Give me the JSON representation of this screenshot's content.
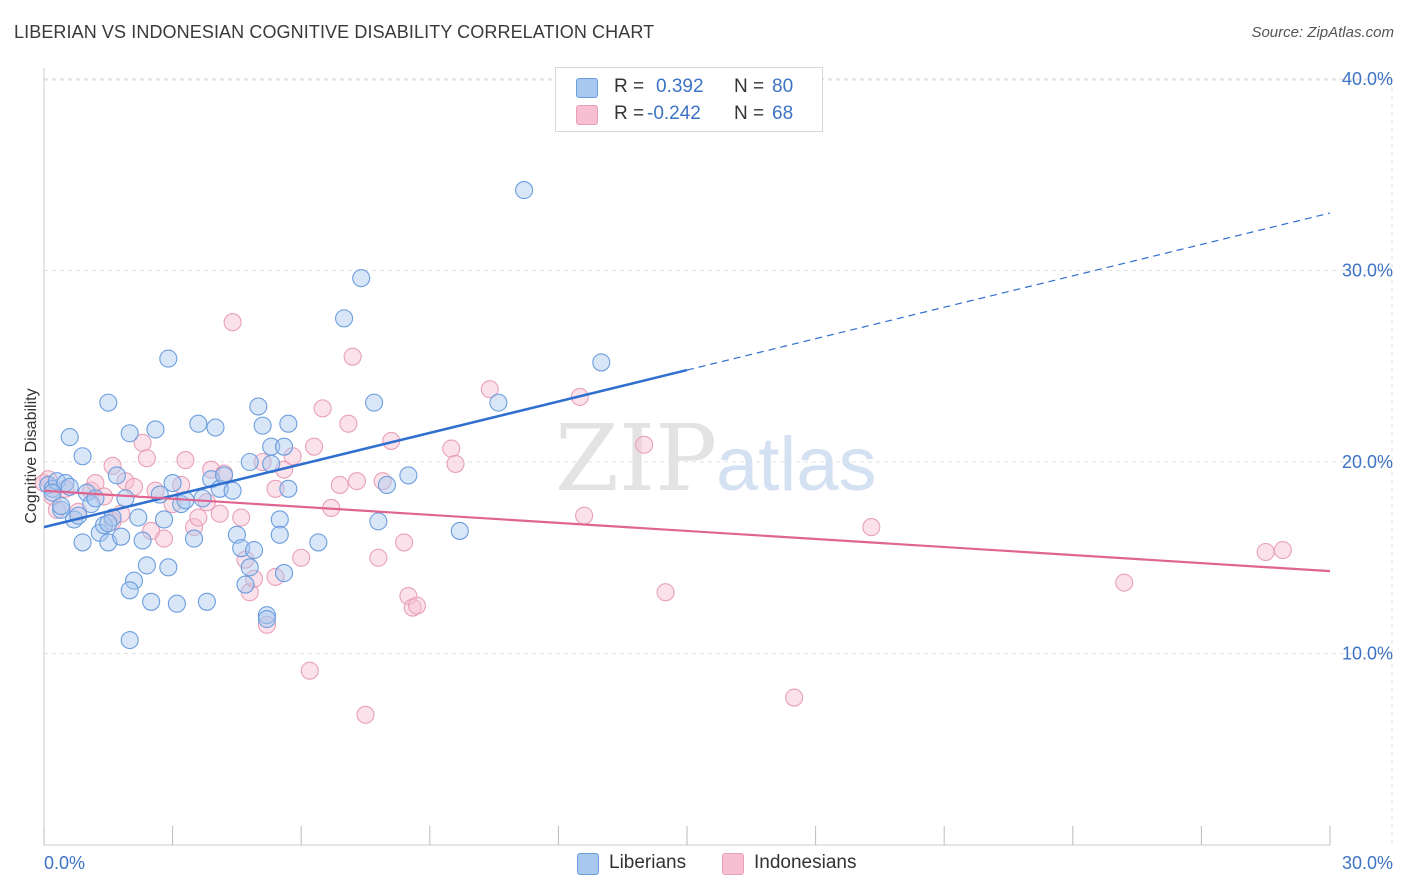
{
  "title": "LIBERIAN VS INDONESIAN COGNITIVE DISABILITY CORRELATION CHART",
  "source": "Source: ZipAtlas.com",
  "watermark": {
    "zip": "ZIP",
    "atlas": "atlas"
  },
  "legend": {
    "rows": [
      {
        "r_label": "R =",
        "r_value": "0.392",
        "n_label": "N =",
        "n_value": "80"
      },
      {
        "r_label": "R =",
        "r_value": "-0.242",
        "n_label": "N =",
        "n_value": "68"
      }
    ]
  },
  "colors": {
    "blue": "#3d73c4",
    "blue_fill": "#a9c8f0",
    "blue_line": "#2f6fcf",
    "pink_fill": "#f7bfd1",
    "pink_line": "#e0648f",
    "grid": "#e2e2e2"
  },
  "chart_data": {
    "type": "scatter",
    "title": "LIBERIAN VS INDONESIAN COGNITIVE DISABILITY CORRELATION CHART",
    "xlabel": "",
    "ylabel": "Cognitive Disability",
    "xlim": [
      0,
      30
    ],
    "ylim": [
      0,
      40
    ],
    "x_ticks": [
      0,
      30
    ],
    "x_tick_labels": [
      "0.0%",
      "30.0%"
    ],
    "y_ticks": [
      10,
      20,
      30,
      40
    ],
    "y_tick_labels": [
      "10.0%",
      "20.0%",
      "30.0%",
      "40.0%"
    ],
    "grid": true,
    "legend_position": "top-center",
    "series": [
      {
        "name": "Liberians",
        "color": "#a9c8f0",
        "stroke": "#6c9ede",
        "r": 0.392,
        "n": 80,
        "trend": {
          "x": [
            0,
            15
          ],
          "y": [
            16.6,
            24.8
          ],
          "dashed_to": [
            30,
            33.0
          ]
        },
        "points": [
          [
            0.1,
            18.8
          ],
          [
            0.2,
            18.6
          ],
          [
            0.3,
            19.0
          ],
          [
            0.4,
            17.5
          ],
          [
            0.5,
            18.9
          ],
          [
            0.6,
            21.3
          ],
          [
            0.6,
            18.7
          ],
          [
            0.7,
            17.0
          ],
          [
            0.8,
            17.2
          ],
          [
            0.9,
            20.3
          ],
          [
            0.9,
            15.8
          ],
          [
            1.0,
            18.4
          ],
          [
            1.1,
            17.8
          ],
          [
            1.2,
            18.1
          ],
          [
            1.3,
            16.3
          ],
          [
            1.4,
            16.7
          ],
          [
            1.5,
            15.8
          ],
          [
            1.5,
            23.1
          ],
          [
            1.6,
            17.1
          ],
          [
            1.7,
            19.3
          ],
          [
            1.8,
            16.1
          ],
          [
            1.9,
            18.1
          ],
          [
            1.5,
            16.8
          ],
          [
            2.0,
            21.5
          ],
          [
            2.1,
            13.8
          ],
          [
            2.0,
            13.3
          ],
          [
            2.2,
            17.1
          ],
          [
            2.3,
            15.9
          ],
          [
            2.4,
            14.6
          ],
          [
            2.5,
            12.7
          ],
          [
            2.6,
            21.7
          ],
          [
            2.7,
            18.3
          ],
          [
            2.8,
            17.0
          ],
          [
            2.9,
            25.4
          ],
          [
            2.9,
            14.5
          ],
          [
            3.0,
            18.9
          ],
          [
            3.1,
            12.6
          ],
          [
            3.2,
            17.8
          ],
          [
            3.3,
            18.0
          ],
          [
            3.5,
            16.0
          ],
          [
            3.6,
            22.0
          ],
          [
            3.7,
            18.1
          ],
          [
            3.8,
            12.7
          ],
          [
            3.9,
            19.1
          ],
          [
            4.0,
            21.8
          ],
          [
            4.1,
            18.6
          ],
          [
            4.2,
            19.3
          ],
          [
            4.4,
            18.5
          ],
          [
            4.5,
            16.2
          ],
          [
            4.6,
            15.5
          ],
          [
            4.7,
            13.6
          ],
          [
            4.8,
            14.5
          ],
          [
            4.8,
            20.0
          ],
          [
            4.9,
            15.4
          ],
          [
            5.0,
            22.9
          ],
          [
            5.1,
            21.9
          ],
          [
            5.3,
            19.9
          ],
          [
            5.5,
            17.0
          ],
          [
            5.5,
            16.2
          ],
          [
            5.6,
            14.2
          ],
          [
            2.0,
            10.7
          ],
          [
            5.2,
            12.0
          ],
          [
            5.2,
            11.8
          ],
          [
            5.3,
            20.8
          ],
          [
            5.6,
            20.8
          ],
          [
            5.7,
            18.6
          ],
          [
            5.7,
            22.0
          ],
          [
            6.4,
            15.8
          ],
          [
            7.0,
            27.5
          ],
          [
            7.4,
            29.6
          ],
          [
            7.7,
            23.1
          ],
          [
            7.8,
            16.9
          ],
          [
            8.0,
            18.8
          ],
          [
            8.5,
            19.3
          ],
          [
            9.7,
            16.4
          ],
          [
            10.6,
            23.1
          ],
          [
            11.2,
            34.2
          ],
          [
            13.0,
            25.2
          ],
          [
            0.2,
            18.4
          ],
          [
            0.4,
            17.7
          ]
        ]
      },
      {
        "name": "Indonesians",
        "color": "#f7bfd1",
        "stroke": "#e8a0b8",
        "r": -0.242,
        "n": 68,
        "trend": {
          "x": [
            0,
            30
          ],
          "y": [
            18.5,
            14.3
          ]
        },
        "points": [
          [
            0.0,
            18.9
          ],
          [
            0.2,
            18.2
          ],
          [
            0.3,
            17.5
          ],
          [
            0.5,
            18.6
          ],
          [
            0.8,
            17.4
          ],
          [
            1.1,
            18.5
          ],
          [
            1.2,
            18.9
          ],
          [
            1.6,
            16.9
          ],
          [
            1.6,
            19.8
          ],
          [
            1.8,
            17.3
          ],
          [
            1.9,
            19.0
          ],
          [
            2.1,
            18.7
          ],
          [
            2.3,
            21.0
          ],
          [
            2.4,
            20.2
          ],
          [
            2.5,
            16.4
          ],
          [
            2.6,
            18.5
          ],
          [
            2.8,
            16.0
          ],
          [
            3.0,
            17.8
          ],
          [
            3.2,
            18.8
          ],
          [
            3.3,
            20.1
          ],
          [
            3.5,
            16.6
          ],
          [
            3.6,
            17.1
          ],
          [
            3.8,
            17.9
          ],
          [
            3.9,
            19.6
          ],
          [
            4.1,
            17.3
          ],
          [
            4.2,
            19.4
          ],
          [
            4.4,
            27.3
          ],
          [
            4.6,
            17.1
          ],
          [
            4.7,
            14.9
          ],
          [
            4.8,
            13.2
          ],
          [
            5.1,
            20.0
          ],
          [
            5.2,
            11.5
          ],
          [
            5.4,
            14.0
          ],
          [
            5.4,
            18.6
          ],
          [
            5.6,
            19.6
          ],
          [
            5.8,
            20.3
          ],
          [
            6.0,
            15.0
          ],
          [
            6.2,
            9.1
          ],
          [
            6.3,
            20.8
          ],
          [
            6.5,
            22.8
          ],
          [
            6.7,
            17.6
          ],
          [
            6.9,
            18.8
          ],
          [
            7.1,
            22.0
          ],
          [
            7.2,
            25.5
          ],
          [
            7.3,
            19.0
          ],
          [
            7.5,
            6.8
          ],
          [
            7.8,
            15.0
          ],
          [
            7.9,
            19.0
          ],
          [
            8.1,
            21.1
          ],
          [
            8.4,
            15.8
          ],
          [
            8.5,
            13.0
          ],
          [
            8.6,
            12.4
          ],
          [
            8.7,
            12.5
          ],
          [
            9.5,
            20.7
          ],
          [
            9.6,
            19.9
          ],
          [
            10.4,
            23.8
          ],
          [
            12.5,
            23.4
          ],
          [
            12.6,
            17.2
          ],
          [
            14.0,
            20.9
          ],
          [
            14.5,
            13.2
          ],
          [
            17.5,
            7.7
          ],
          [
            19.3,
            16.6
          ],
          [
            25.2,
            13.7
          ],
          [
            28.5,
            15.3
          ],
          [
            28.9,
            15.4
          ],
          [
            0.1,
            19.1
          ],
          [
            1.4,
            18.2
          ],
          [
            4.9,
            13.9
          ]
        ]
      }
    ]
  },
  "bottom_legend": [
    {
      "label": "Liberians"
    },
    {
      "label": "Indonesians"
    }
  ]
}
